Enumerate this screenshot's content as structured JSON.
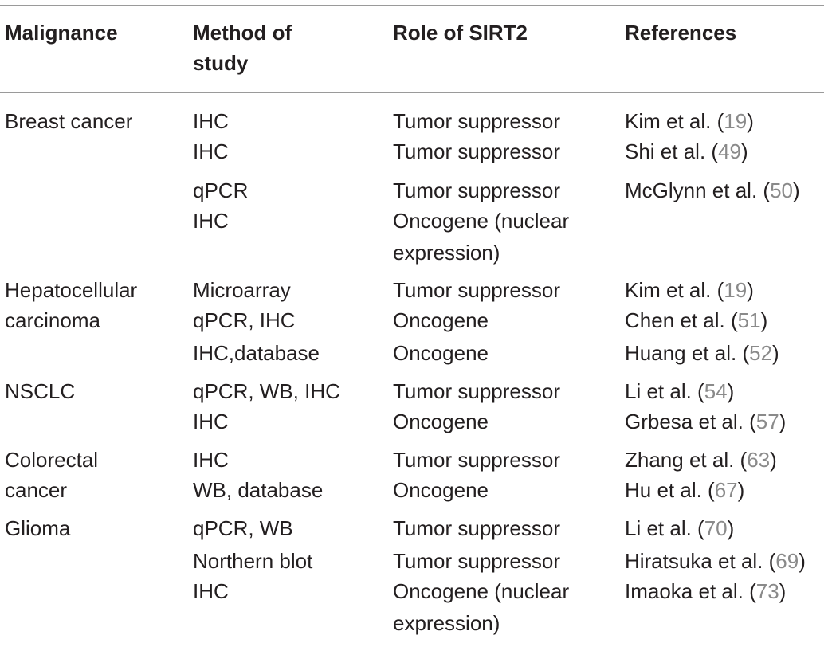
{
  "header": {
    "malignance": "Malignance",
    "method_line1": "Method of",
    "method_line2": "study",
    "role": "Role of SIRT2",
    "references": "References"
  },
  "rows": [
    {
      "malignance": [
        "Breast cancer"
      ],
      "entries": [
        {
          "method": "IHC",
          "role": [
            "Tumor suppressor"
          ],
          "author": "Kim et al.",
          "ref": "19"
        },
        {
          "method": "IHC",
          "role": [
            "Tumor suppressor"
          ],
          "author": "Shi et al.",
          "ref": "49"
        },
        {
          "method": "qPCR",
          "role": [
            "Tumor suppressor"
          ],
          "author": "McGlynn et al.",
          "ref": "50"
        },
        {
          "method": "IHC",
          "role": [
            "Oncogene (nuclear",
            "expression)"
          ],
          "author": "",
          "ref": ""
        }
      ]
    },
    {
      "malignance": [
        "Hepatocellular",
        "carcinoma"
      ],
      "entries": [
        {
          "method": "Microarray",
          "role": [
            "Tumor suppressor"
          ],
          "author": "Kim et al.",
          "ref": "19"
        },
        {
          "method": "qPCR, IHC",
          "role": [
            "Oncogene"
          ],
          "author": "Chen et al.",
          "ref": "51"
        },
        {
          "method": "IHC,database",
          "role": [
            "Oncogene"
          ],
          "author": "Huang et al.",
          "ref": "52"
        }
      ]
    },
    {
      "malignance": [
        "NSCLC"
      ],
      "entries": [
        {
          "method": "qPCR, WB, IHC",
          "role": [
            "Tumor suppressor"
          ],
          "author": "Li et al.",
          "ref": "54"
        },
        {
          "method": "IHC",
          "role": [
            "Oncogene"
          ],
          "author": "Grbesa et al.",
          "ref": "57"
        }
      ]
    },
    {
      "malignance": [
        "Colorectal",
        "cancer"
      ],
      "entries": [
        {
          "method": "IHC",
          "role": [
            "Tumor suppressor"
          ],
          "author": "Zhang et al.",
          "ref": "63"
        },
        {
          "method": "WB, database",
          "role": [
            "Oncogene"
          ],
          "author": "Hu et al.",
          "ref": "67"
        }
      ]
    },
    {
      "malignance": [
        "Glioma"
      ],
      "entries": [
        {
          "method": "qPCR, WB",
          "role": [
            "Tumor suppressor"
          ],
          "author": "Li et al.",
          "ref": "70"
        },
        {
          "method": "Northern blot",
          "role": [
            "Tumor suppressor"
          ],
          "author": "Hiratsuka et al.",
          "ref": "69"
        },
        {
          "method": "IHC",
          "role": [
            "Oncogene (nuclear",
            "expression)"
          ],
          "author": "Imaoka et al.",
          "ref": "73"
        }
      ]
    }
  ]
}
